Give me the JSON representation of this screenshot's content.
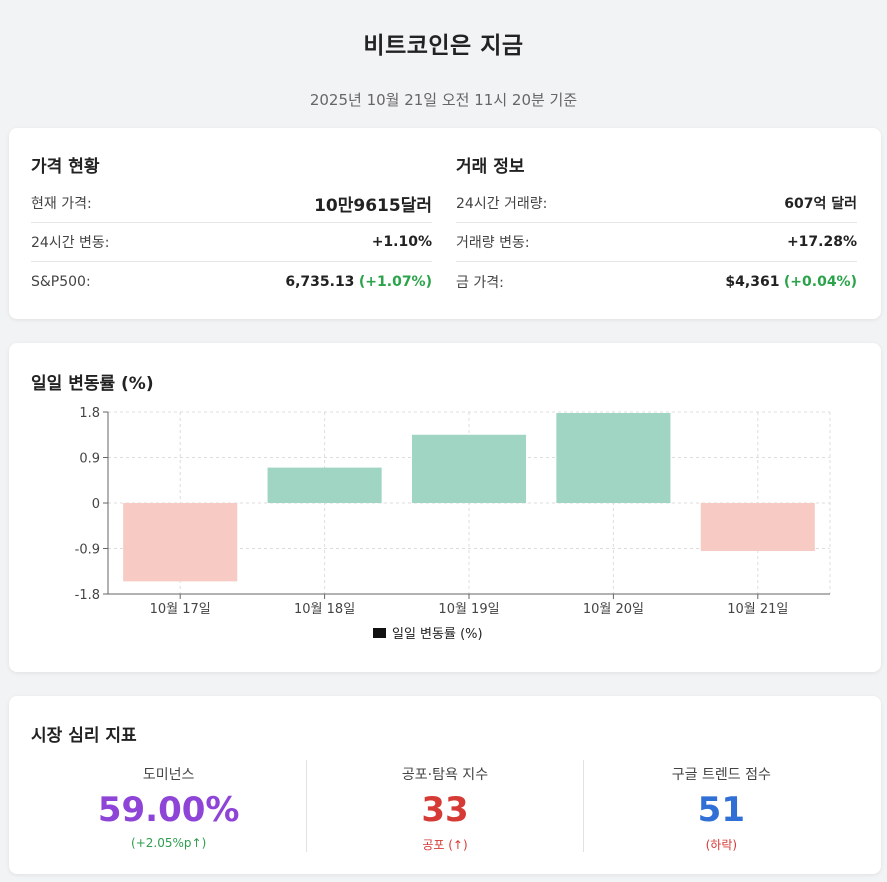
{
  "header": {
    "title": "비트코인은 지금",
    "subtitle": "2025년 10월 21일 오전 11시 20분 기준"
  },
  "price_status": {
    "title": "가격 현황",
    "rows": [
      {
        "label": "현재 가격:",
        "value": "10만9615달러"
      },
      {
        "label": "24시간 변동:",
        "value": "+1.10%"
      },
      {
        "label": "S&P500:",
        "value": "6,735.13",
        "change": "(+1.07%)"
      }
    ]
  },
  "trade_info": {
    "title": "거래 정보",
    "rows": [
      {
        "label": "24시간 거래량:",
        "value": "607억 달러"
      },
      {
        "label": "거래량 변동:",
        "value": "+17.28%"
      },
      {
        "label": "금 가격:",
        "value": "$4,361",
        "change": "(+0.04%)"
      }
    ]
  },
  "chart_section": {
    "title": "일일 변동률 (%)"
  },
  "chart_data": {
    "type": "bar",
    "categories": [
      "10월 17일",
      "10월 18일",
      "10월 19일",
      "10월 20일",
      "10월 21일"
    ],
    "series": [
      {
        "name": "일일 변동률 (%)",
        "values": [
          -1.55,
          0.7,
          1.35,
          1.78,
          -0.95
        ]
      }
    ],
    "ylim": [
      -1.8,
      1.8
    ],
    "yticks": [
      1.8,
      0.9,
      0,
      -0.9,
      -1.8
    ],
    "ytick_labels": [
      "1.8",
      "0.9",
      "0",
      "-0.9",
      "-1.8"
    ],
    "grid": true,
    "legend": "bottom-center",
    "colors": {
      "positive": "#a0d5c3",
      "negative": "#f8cac4",
      "legend_swatch": "#111111"
    }
  },
  "sentiment": {
    "title": "시장 심리 지표",
    "items": [
      {
        "label": "도미넌스",
        "value": "59.00%",
        "note": "(+2.05%p↑)",
        "value_color": "#8e44d6",
        "note_color": "#2e9e4f"
      },
      {
        "label": "공포·탐욕 지수",
        "value": "33",
        "note": "공포 (↑)",
        "value_color": "#d63a35",
        "note_color": "#d63a35"
      },
      {
        "label": "구글 트렌드 점수",
        "value": "51",
        "note": "(하락)",
        "value_color": "#2f6fd6",
        "note_color": "#d63a35"
      }
    ]
  }
}
